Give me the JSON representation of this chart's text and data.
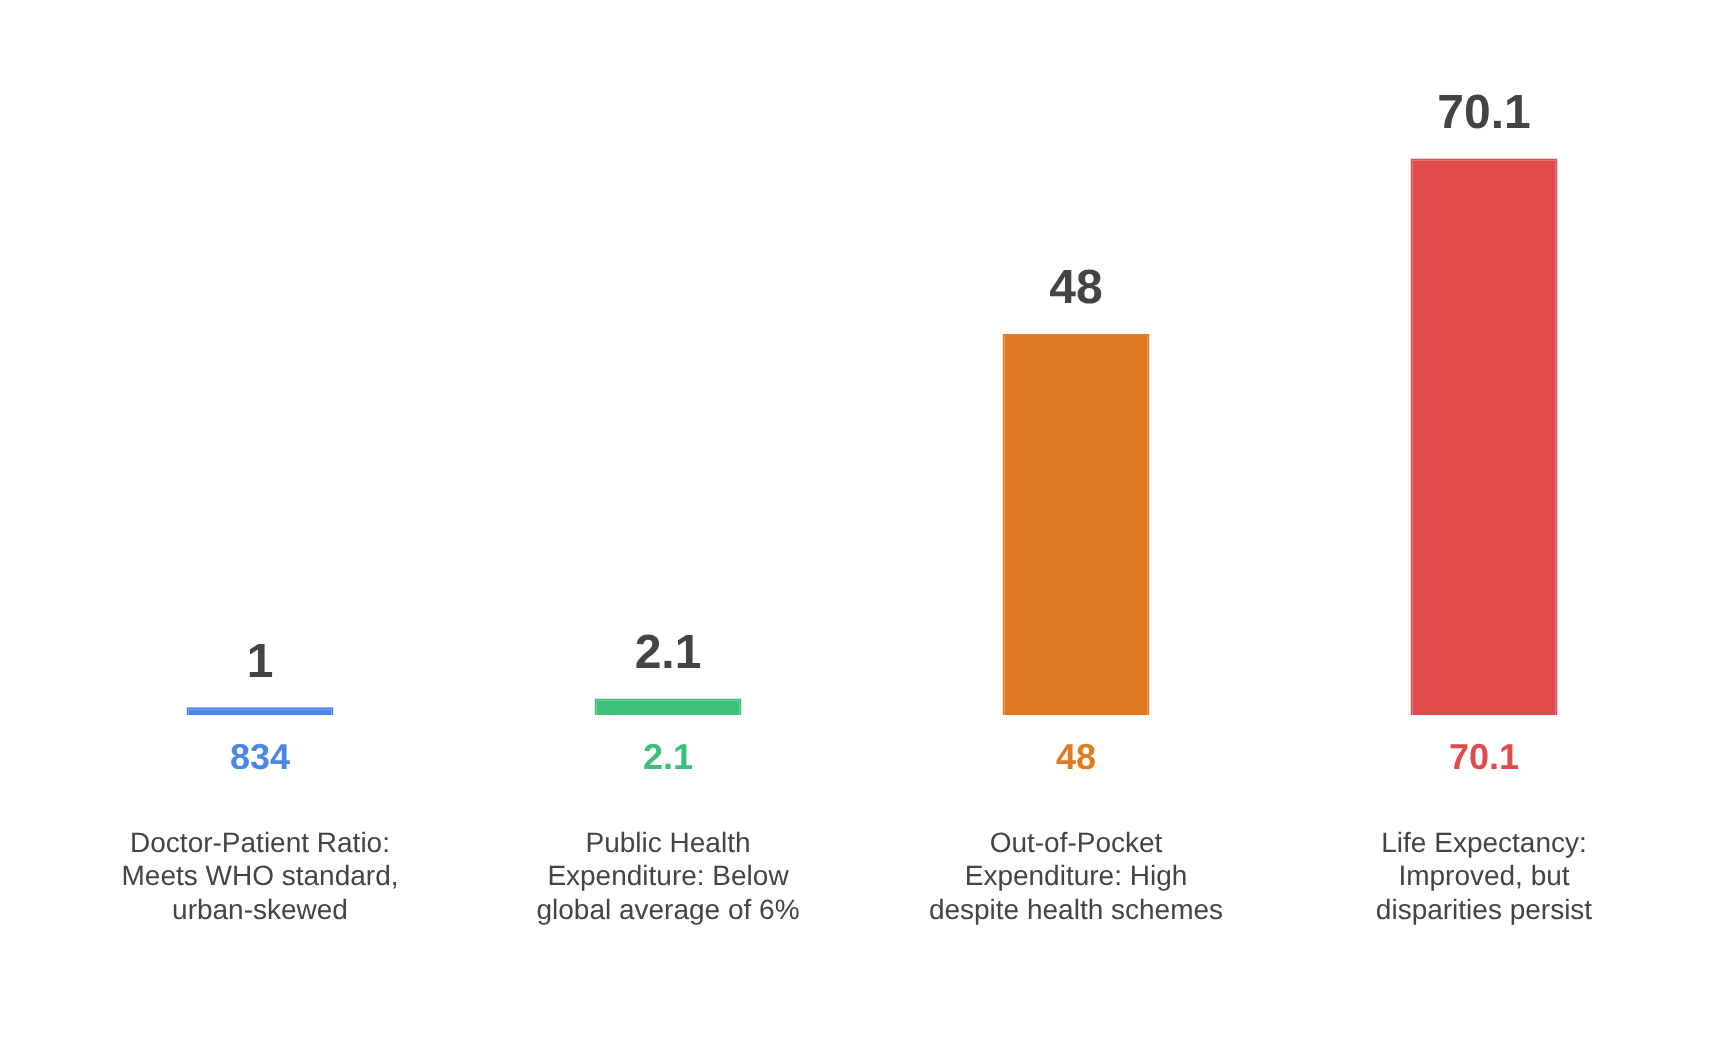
{
  "chart_data": {
    "type": "bar",
    "categories": [
      "Doctor-Patient Ratio: Meets WHO standard, urban-skewed",
      "Public Health Expenditure: Below global average of 6%",
      "Out-of-Pocket Expenditure: High despite health schemes",
      "Life Expectancy: Improved, but disparities persist"
    ],
    "values": [
      1,
      2.1,
      48,
      70.1
    ],
    "colors": [
      "#4a86e8",
      "#3cc07a",
      "#e07b24",
      "#e04b4b"
    ],
    "data_labels": true,
    "annotations": [
      "834",
      "2.1",
      "48",
      "70.1"
    ],
    "grid": false,
    "legend": false,
    "tick_labels": "x"
  }
}
